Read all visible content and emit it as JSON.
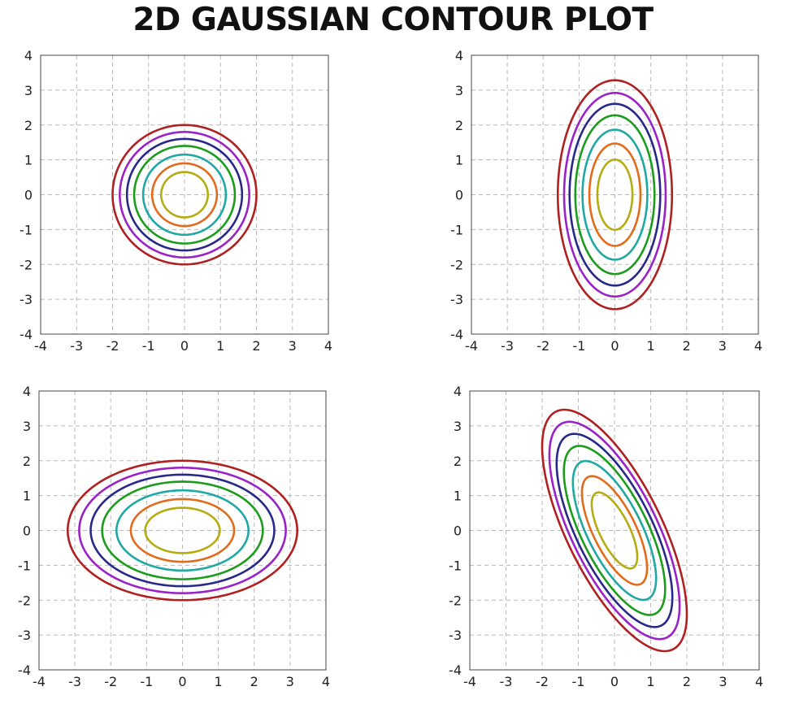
{
  "title": "2D GAUSSIAN CONTOUR PLOT",
  "colors": {
    "contours": [
      "#b5ac12",
      "#e26b1c",
      "#1fa8a4",
      "#1b9d1b",
      "#28288a",
      "#9a22c8",
      "#b02020"
    ],
    "grid": "#b8b8b8",
    "frame": "#444444"
  },
  "chart_data": [
    {
      "type": "contour",
      "xlim": [
        -4,
        4
      ],
      "ylim": [
        -4,
        4
      ],
      "xticks": [
        "-4",
        "-3",
        "-2",
        "-1",
        "0",
        "1",
        "2",
        "3",
        "4"
      ],
      "yticks": [
        "4",
        "3",
        "2",
        "1",
        "0",
        "-1",
        "-2",
        "-3",
        "-4"
      ],
      "grid": true,
      "mean": [
        0,
        0
      ],
      "covariance": [
        [
          1,
          0
        ],
        [
          0,
          1
        ]
      ],
      "contour_radii": [
        0.65,
        0.9,
        1.15,
        1.4,
        1.6,
        1.8,
        2.0
      ]
    },
    {
      "type": "contour",
      "xlim": [
        -4,
        4
      ],
      "ylim": [
        -4,
        4
      ],
      "xticks": [
        "-4",
        "-3",
        "-2",
        "-1",
        "0",
        "1",
        "2",
        "3",
        "4"
      ],
      "yticks": [
        "4",
        "3",
        "2",
        "1",
        "0",
        "-1",
        "-2",
        "-3",
        "-4"
      ],
      "grid": true,
      "mean": [
        0,
        0
      ],
      "covariance": [
        [
          0.64,
          0
        ],
        [
          0,
          2.7225
        ]
      ],
      "contour_radii": [
        0.61,
        0.89,
        1.13,
        1.38,
        1.58,
        1.77,
        1.99
      ]
    },
    {
      "type": "contour",
      "xlim": [
        -4,
        4
      ],
      "ylim": [
        -4,
        4
      ],
      "xticks": [
        "-4",
        "-3",
        "-2",
        "-1",
        "0",
        "1",
        "2",
        "3",
        "4"
      ],
      "yticks": [
        "4",
        "3",
        "2",
        "1",
        "0",
        "-1",
        "-2",
        "-3",
        "-4"
      ],
      "grid": true,
      "mean": [
        0,
        0
      ],
      "covariance": [
        [
          2.56,
          0
        ],
        [
          0,
          1
        ]
      ],
      "contour_radii": [
        0.65,
        0.9,
        1.15,
        1.4,
        1.6,
        1.8,
        2.0
      ]
    },
    {
      "type": "contour",
      "xlim": [
        -4,
        4
      ],
      "ylim": [
        -4,
        4
      ],
      "xticks": [
        "-4",
        "-3",
        "-2",
        "-1",
        "0",
        "1",
        "2",
        "3",
        "4"
      ],
      "yticks": [
        "4",
        "3",
        "2",
        "1",
        "0",
        "-1",
        "-2",
        "-3",
        "-4"
      ],
      "grid": true,
      "mean": [
        0,
        0
      ],
      "covariance": [
        [
          1,
          -1.2
        ],
        [
          -1.2,
          3
        ]
      ],
      "contour_radii": [
        0.63,
        0.9,
        1.15,
        1.4,
        1.6,
        1.8,
        2.0
      ]
    }
  ]
}
